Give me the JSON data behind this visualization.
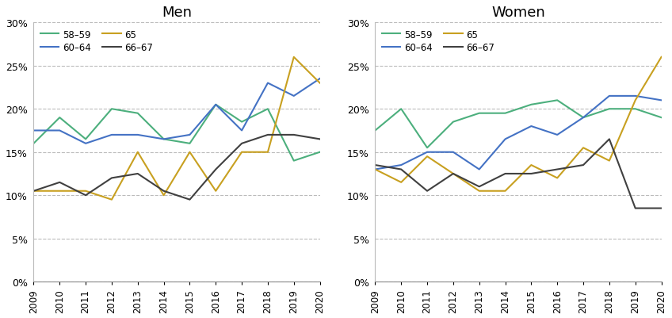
{
  "years": [
    2009,
    2010,
    2011,
    2012,
    2013,
    2014,
    2015,
    2016,
    2017,
    2018,
    2019,
    2020
  ],
  "men": {
    "58-59": [
      0.16,
      0.19,
      0.165,
      0.2,
      0.195,
      0.165,
      0.16,
      0.205,
      0.185,
      0.2,
      0.14,
      0.15
    ],
    "60-64": [
      0.175,
      0.175,
      0.16,
      0.17,
      0.17,
      0.165,
      0.17,
      0.205,
      0.175,
      0.23,
      0.215,
      0.235
    ],
    "65": [
      0.105,
      0.105,
      0.105,
      0.095,
      0.15,
      0.1,
      0.15,
      0.105,
      0.15,
      0.15,
      0.26,
      0.23
    ],
    "66-67": [
      0.105,
      0.115,
      0.1,
      0.12,
      0.125,
      0.105,
      0.095,
      0.13,
      0.16,
      0.17,
      0.17,
      0.165
    ]
  },
  "women": {
    "58-59": [
      0.175,
      0.2,
      0.155,
      0.185,
      0.195,
      0.195,
      0.205,
      0.21,
      0.19,
      0.2,
      0.2,
      0.19
    ],
    "60-64": [
      0.13,
      0.135,
      0.15,
      0.15,
      0.13,
      0.165,
      0.18,
      0.17,
      0.19,
      0.215,
      0.215,
      0.21
    ],
    "65": [
      0.13,
      0.115,
      0.145,
      0.125,
      0.105,
      0.105,
      0.135,
      0.12,
      0.155,
      0.14,
      0.21,
      0.26
    ],
    "66-67": [
      0.135,
      0.13,
      0.105,
      0.125,
      0.11,
      0.125,
      0.125,
      0.13,
      0.135,
      0.165,
      0.085,
      0.085
    ]
  },
  "colors": {
    "58-59": "#4caf7d",
    "60-64": "#4472c4",
    "65": "#c8a020",
    "66-67": "#404040"
  },
  "titles": [
    "Men",
    "Women"
  ],
  "ylim": [
    0,
    0.3
  ],
  "yticks": [
    0.0,
    0.05,
    0.1,
    0.15,
    0.2,
    0.25,
    0.3
  ],
  "legend_labels": [
    "58–59",
    "60–64",
    "65",
    "66–67"
  ],
  "series_keys": [
    "58-59",
    "60-64",
    "65",
    "66-67"
  ]
}
